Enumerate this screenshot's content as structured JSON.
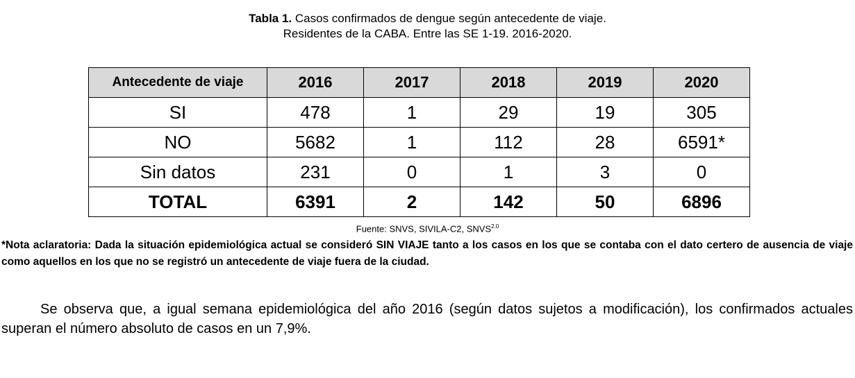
{
  "caption": {
    "label": "Tabla 1.",
    "line1": "Casos confirmados de dengue según antecedente de viaje.",
    "line2": "Residentes de la CABA. Entre las SE 1-19. 2016-2020."
  },
  "table": {
    "headers": [
      "Antecedente de viaje",
      "2016",
      "2017",
      "2018",
      "2019",
      "2020"
    ],
    "rows": [
      [
        "SI",
        "478",
        "1",
        "29",
        "19",
        "305"
      ],
      [
        "NO",
        "5682",
        "1",
        "112",
        "28",
        "6591*"
      ],
      [
        "Sin datos",
        "231",
        "0",
        "1",
        "3",
        "0"
      ],
      [
        "TOTAL",
        "6391",
        "2",
        "142",
        "50",
        "6896"
      ]
    ]
  },
  "source": {
    "text": "Fuente: SNVS, SIVILA-C2, SNVS",
    "sup": "2.0"
  },
  "note": "*Nota aclaratoria: Dada la situación epidemiológica actual se consideró SIN VIAJE tanto a los casos en los que se contaba con el dato certero de ausencia de viaje como aquellos en los que no se registró un antecedente de viaje fuera de la ciudad.",
  "paragraph": "Se observa que, a igual semana epidemiológica del año 2016 (según datos sujetos a modificación), los confirmados actuales superan el número absoluto de casos en un 7,9%."
}
